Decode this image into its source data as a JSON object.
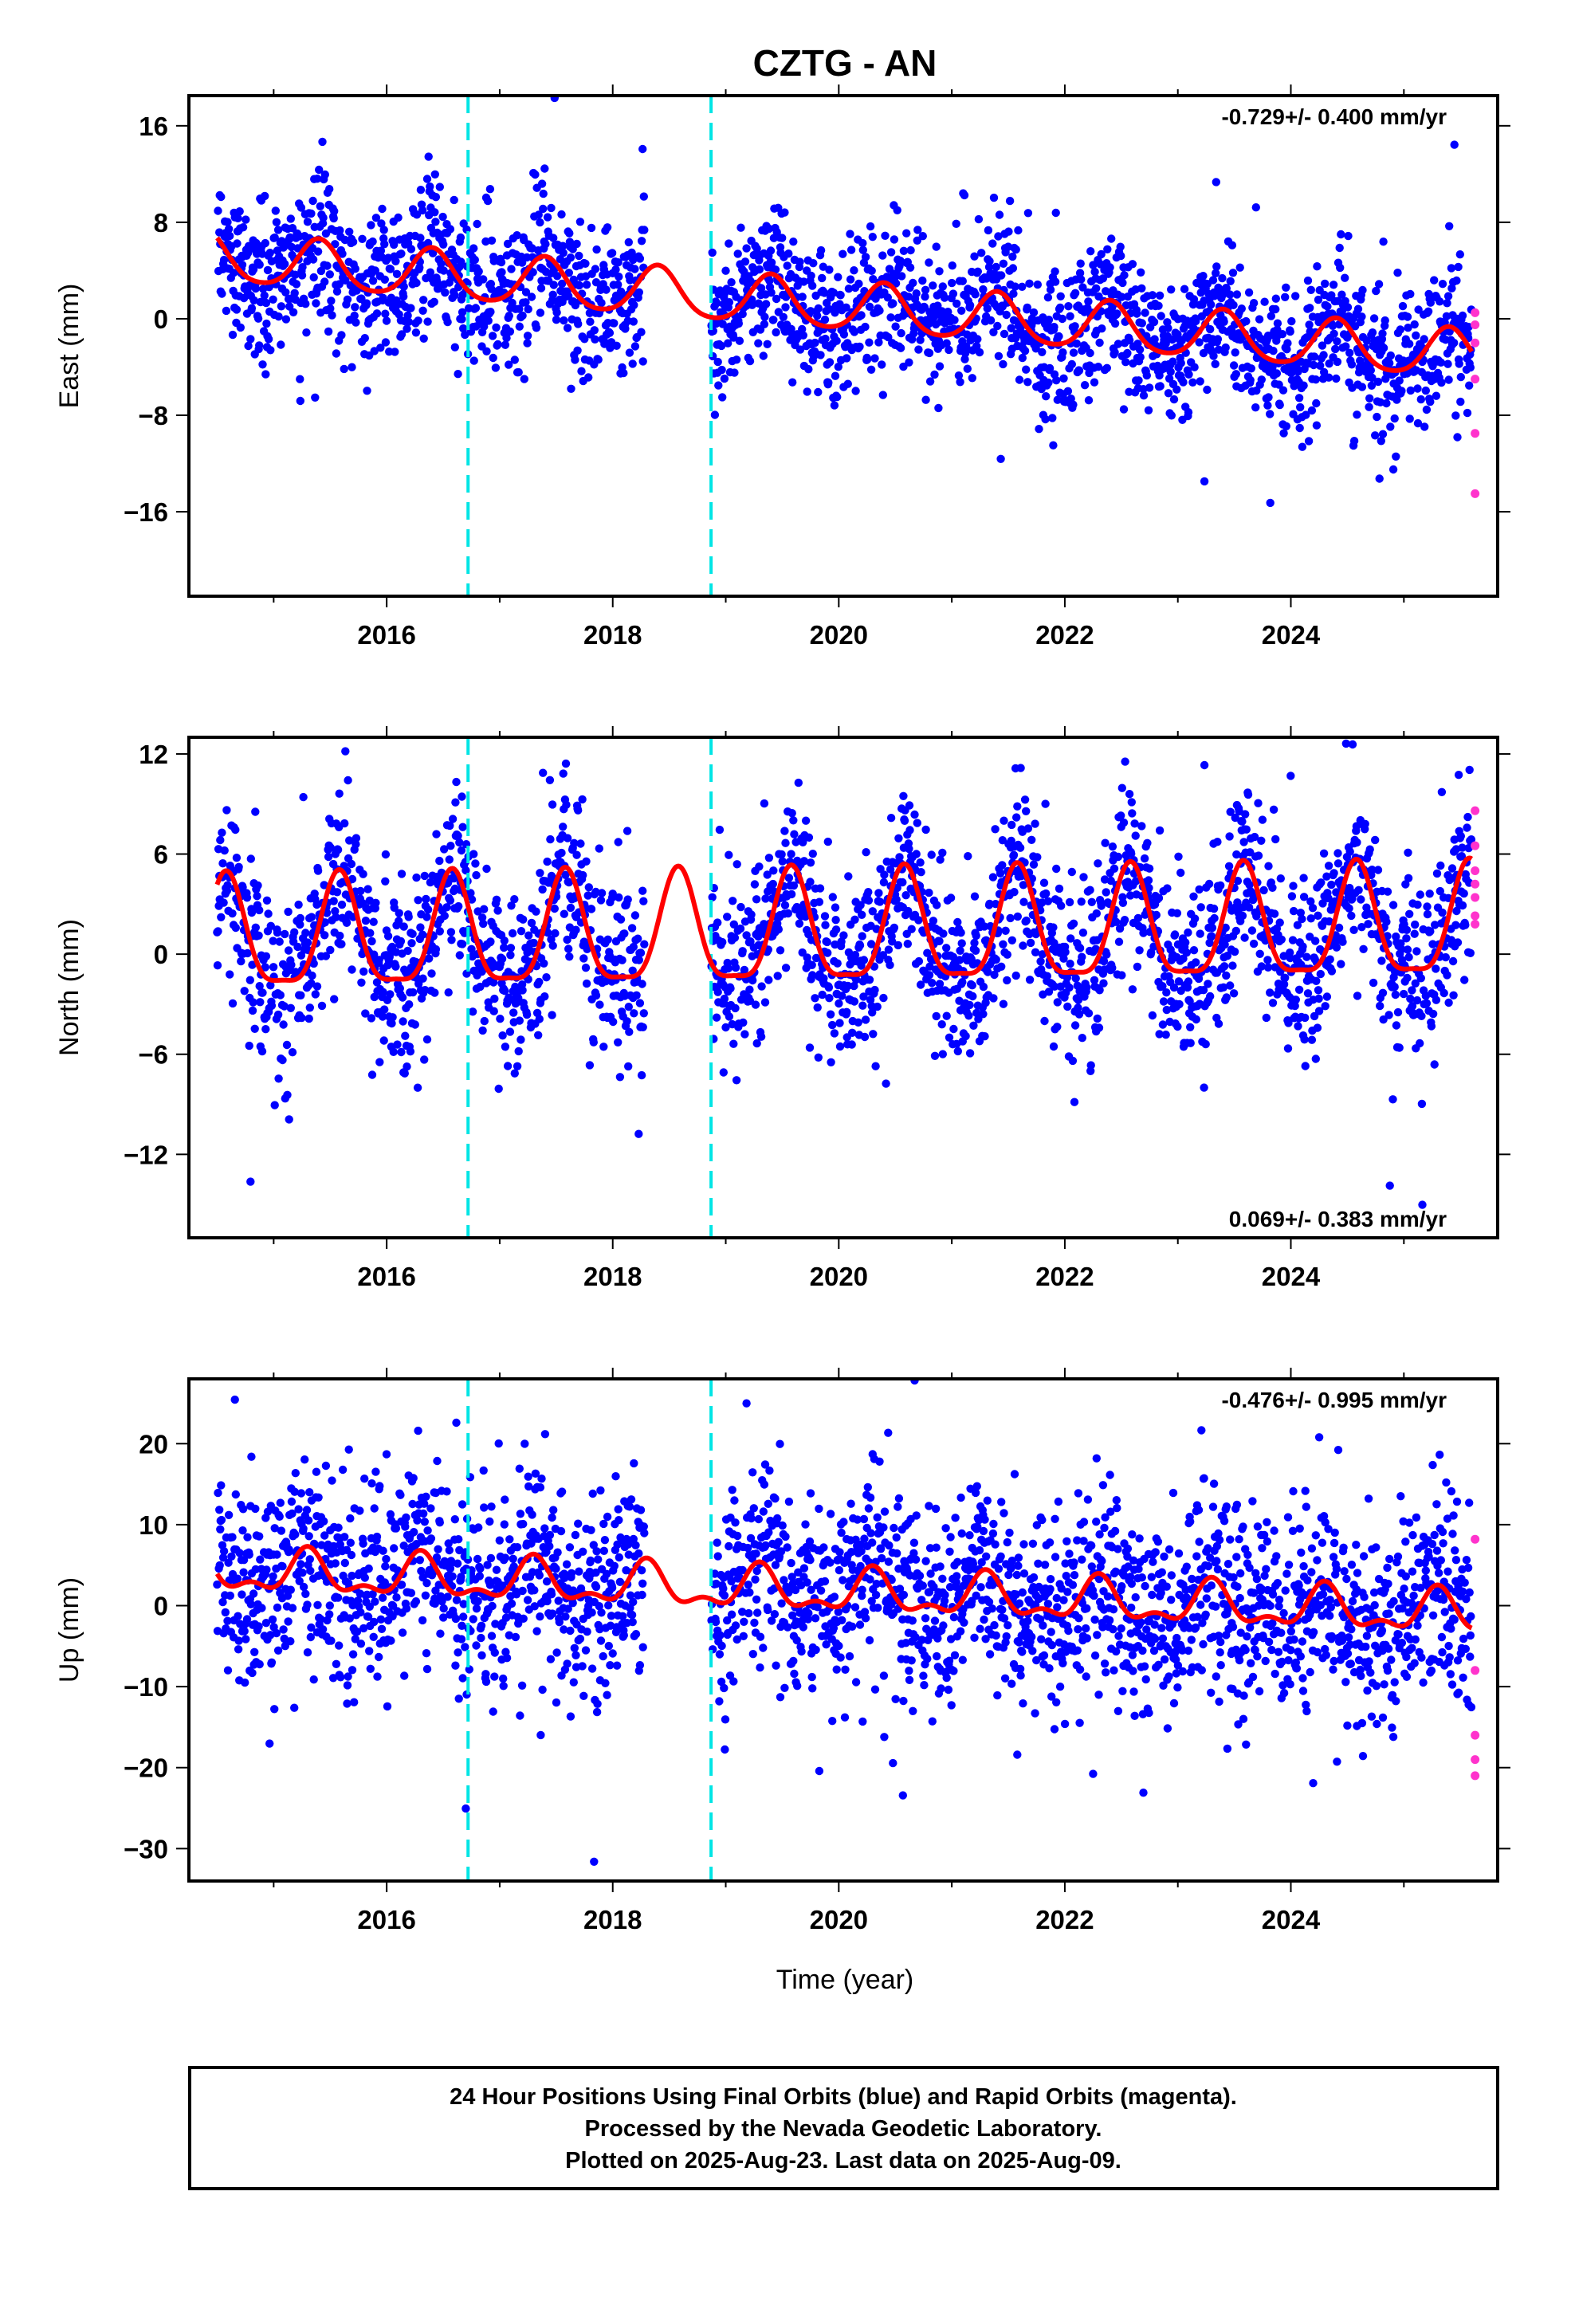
{
  "title": "CZTG - AN",
  "x_axis_label": "Time (year)",
  "footer": [
    "24 Hour Positions Using Final Orbits (blue) and Rapid Orbits (magenta).",
    "Processed by the Nevada Geodetic Laboratory.",
    "Plotted on 2025-Aug-23. Last data on 2025-Aug-09."
  ],
  "colors": {
    "final_orbits": "#0000ff",
    "rapid_orbits": "#ff33cc",
    "model_fit": "#ff0000",
    "offset_lines": "#00e5e5"
  },
  "chart_data": [
    {
      "type": "scatter",
      "component": "east",
      "ylabel": "East (mm)",
      "rate_text": "-0.729+/- 0.400 mm/yr",
      "rate_position": "top-right",
      "xlim": [
        2014.25,
        2025.83
      ],
      "ylim": [
        -23,
        18.5
      ],
      "xticks": [
        2016,
        2018,
        2020,
        2022,
        2024
      ],
      "yticks": [
        16,
        8,
        0,
        -8,
        -16
      ],
      "ytick_labels": [
        "16",
        "8",
        "0",
        "−8",
        "−16"
      ],
      "offset_epochs": [
        2016.72,
        2018.87
      ],
      "data_span": [
        2014.5,
        2025.6
      ],
      "gap": [
        2018.28,
        2018.87
      ],
      "model": {
        "start_value": 5.0,
        "rate_mm_per_yr": -0.729,
        "annual_amplitude": 2.0,
        "annual_peak": 2015.4,
        "semiannual_amplitude": 0.3,
        "noise_sigma": 2.9
      },
      "rapid_points": {
        "x": 2025.63,
        "y": [
          0.5,
          -0.5,
          -2.0,
          -5.0,
          -9.5,
          -14.5
        ]
      }
    },
    {
      "type": "scatter",
      "component": "north",
      "ylabel": "North (mm)",
      "rate_text": "0.069+/- 0.383 mm/yr",
      "rate_position": "bottom-right",
      "xlim": [
        2014.25,
        2025.83
      ],
      "ylim": [
        -17,
        13
      ],
      "xticks": [
        2016,
        2018,
        2020,
        2022,
        2024
      ],
      "yticks": [
        12,
        6,
        0,
        -6,
        -12
      ],
      "ytick_labels": [
        "12",
        "6",
        "0",
        "−6",
        "−12"
      ],
      "offset_epochs": [
        2016.72,
        2018.87
      ],
      "data_span": [
        2014.5,
        2025.6
      ],
      "gap": [
        2018.28,
        2018.87
      ],
      "model": {
        "start_value": 0.8,
        "rate_mm_per_yr": 0.069,
        "annual_amplitude": 3.3,
        "annual_peak": 2015.58,
        "semiannual_amplitude": 0.9,
        "noise_sigma": 2.6
      },
      "rapid_points": {
        "x": 2025.63,
        "y": [
          8.6,
          6.5,
          5.0,
          4.2,
          3.4,
          2.3,
          1.8
        ]
      }
    },
    {
      "type": "scatter",
      "component": "up",
      "ylabel": "Up (mm)",
      "rate_text": "-0.476+/- 0.995 mm/yr",
      "rate_position": "top-right",
      "xlim": [
        2014.25,
        2025.83
      ],
      "ylim": [
        -34,
        28
      ],
      "xticks": [
        2016,
        2018,
        2020,
        2022,
        2024
      ],
      "yticks": [
        20,
        10,
        0,
        -10,
        -20,
        -30
      ],
      "ytick_labels": [
        "20",
        "10",
        "0",
        "−10",
        "−20",
        "−30"
      ],
      "offset_epochs": [
        2016.72,
        2018.87
      ],
      "data_span": [
        2014.5,
        2025.6
      ],
      "gap": [
        2018.28,
        2018.87
      ],
      "model": {
        "start_value": 4.2,
        "rate_mm_per_yr": -0.476,
        "annual_amplitude": 2.3,
        "annual_peak": 2015.3,
        "semiannual_amplitude": 1.2,
        "noise_sigma": 6.2
      },
      "rapid_points": {
        "x": 2025.63,
        "y": [
          8.2,
          -8.0,
          -16.0,
          -19.0,
          -21.0
        ]
      }
    }
  ]
}
